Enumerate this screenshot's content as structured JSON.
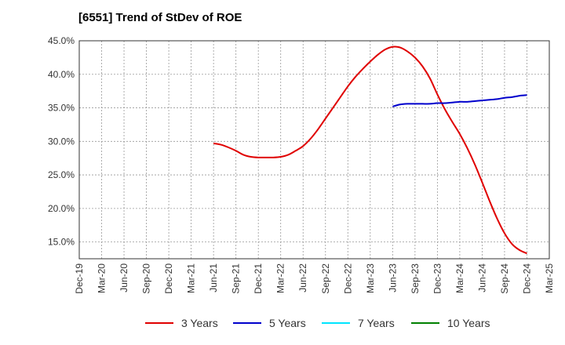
{
  "title": "[6551]  Trend of StDev of ROE",
  "chart_data": {
    "type": "line",
    "title": "[6551]  Trend of StDev of ROE",
    "xlabel": "",
    "ylabel": "",
    "x_ticks": [
      "Dec-19",
      "Mar-20",
      "Jun-20",
      "Sep-20",
      "Dec-20",
      "Mar-21",
      "Jun-21",
      "Sep-21",
      "Dec-21",
      "Mar-22",
      "Jun-22",
      "Sep-22",
      "Dec-22",
      "Mar-23",
      "Jun-23",
      "Sep-23",
      "Dec-23",
      "Mar-24",
      "Jun-24",
      "Sep-24",
      "Dec-24",
      "Mar-25"
    ],
    "y_ticks": [
      "15.0%",
      "20.0%",
      "25.0%",
      "30.0%",
      "35.0%",
      "40.0%",
      "45.0%"
    ],
    "ylim": [
      12.5,
      45.0
    ],
    "grid": true,
    "legend_position": "bottom",
    "series": [
      {
        "name": "3 Years",
        "color": "#e00000",
        "x": [
          "Jun-21",
          "Jul-21",
          "Aug-21",
          "Sep-21",
          "Oct-21",
          "Nov-21",
          "Dec-21",
          "Jan-22",
          "Feb-22",
          "Mar-22",
          "Apr-22",
          "May-22",
          "Jun-22",
          "Jul-22",
          "Aug-22",
          "Sep-22",
          "Oct-22",
          "Nov-22",
          "Dec-22",
          "Jan-23",
          "Feb-23",
          "Mar-23",
          "Apr-23",
          "May-23",
          "Jun-23",
          "Jul-23",
          "Aug-23",
          "Sep-23",
          "Oct-23",
          "Nov-23",
          "Dec-23",
          "Jan-24",
          "Feb-24",
          "Mar-24",
          "Apr-24",
          "May-24",
          "Jun-24",
          "Jul-24",
          "Aug-24",
          "Sep-24",
          "Oct-24",
          "Nov-24",
          "Dec-24"
        ],
        "values": [
          29.7,
          29.5,
          29.1,
          28.6,
          28.0,
          27.7,
          27.6,
          27.6,
          27.6,
          27.7,
          28.0,
          28.6,
          29.3,
          30.4,
          31.8,
          33.4,
          35.0,
          36.6,
          38.2,
          39.6,
          40.8,
          41.9,
          42.9,
          43.7,
          44.1,
          44.0,
          43.4,
          42.5,
          41.2,
          39.4,
          37.0,
          34.8,
          32.9,
          31.1,
          29.0,
          26.6,
          23.9,
          21.1,
          18.5,
          16.3,
          14.7,
          13.8,
          13.3
        ]
      },
      {
        "name": "5 Years",
        "color": "#0000cc",
        "x": [
          "Jun-23",
          "Jul-23",
          "Aug-23",
          "Sep-23",
          "Oct-23",
          "Nov-23",
          "Dec-23",
          "Jan-24",
          "Feb-24",
          "Mar-24",
          "Apr-24",
          "May-24",
          "Jun-24",
          "Jul-24",
          "Aug-24",
          "Sep-24",
          "Oct-24",
          "Nov-24",
          "Dec-24"
        ],
        "values": [
          35.2,
          35.5,
          35.6,
          35.6,
          35.6,
          35.6,
          35.7,
          35.7,
          35.8,
          35.9,
          35.9,
          36.0,
          36.1,
          36.2,
          36.3,
          36.5,
          36.6,
          36.8,
          36.9
        ]
      },
      {
        "name": "7 Years",
        "color": "#00e5ff",
        "x": [],
        "values": []
      },
      {
        "name": "10 Years",
        "color": "#008000",
        "x": [],
        "values": []
      }
    ]
  }
}
